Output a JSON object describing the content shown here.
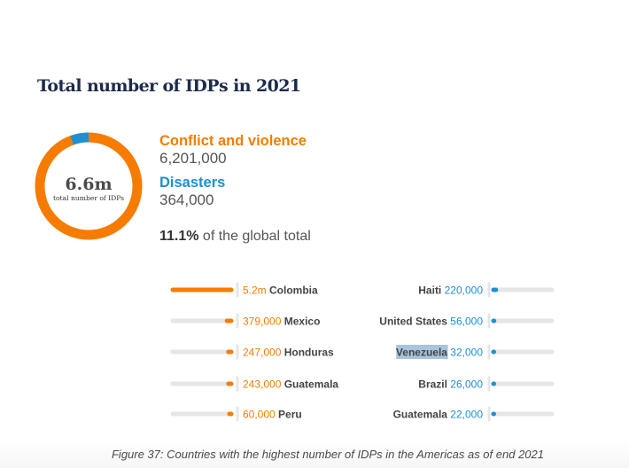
{
  "title": "Total number of IDPs in 2021",
  "colors": {
    "conflict": "#f57c00",
    "disasters": "#1f8fcf",
    "track": "#e6e6e6",
    "title": "#1d2b4a",
    "highlight": "#a9c4dc"
  },
  "donut": {
    "center_value": "6.6m",
    "center_label": "total number of IDPs"
  },
  "legend": {
    "conflict_label": "Conflict and violence",
    "conflict_value": "6,201,000",
    "disasters_label": "Disasters",
    "disasters_value": "364,000"
  },
  "share": {
    "value": "11.1%",
    "text": " of the global total"
  },
  "caption": "Figure 37: Countries with the highest number of IDPs in the Americas as of end 2021",
  "chart_data": [
    {
      "type": "pie",
      "title": "Total number of IDPs in 2021",
      "categories": [
        "Conflict and violence",
        "Disasters"
      ],
      "values": [
        6201000,
        364000
      ]
    },
    {
      "type": "bar",
      "title": "Conflict and violence",
      "categories": [
        "Colombia",
        "Mexico",
        "Honduras",
        "Guatemala",
        "Peru"
      ],
      "labels": [
        "5.2m",
        "379,000",
        "247,000",
        "243,000",
        "60,000"
      ],
      "values": [
        5200000,
        379000,
        247000,
        243000,
        60000
      ],
      "xlim": [
        0,
        5200000
      ]
    },
    {
      "type": "bar",
      "title": "Disasters",
      "categories": [
        "Haiti",
        "United States",
        "Venezuela",
        "Brazil",
        "Guatemala"
      ],
      "labels": [
        "220,000",
        "56,000",
        "32,000",
        "26,000",
        "22,000"
      ],
      "values": [
        220000,
        56000,
        32000,
        26000,
        22000
      ],
      "xlim": [
        0,
        5200000
      ]
    }
  ]
}
